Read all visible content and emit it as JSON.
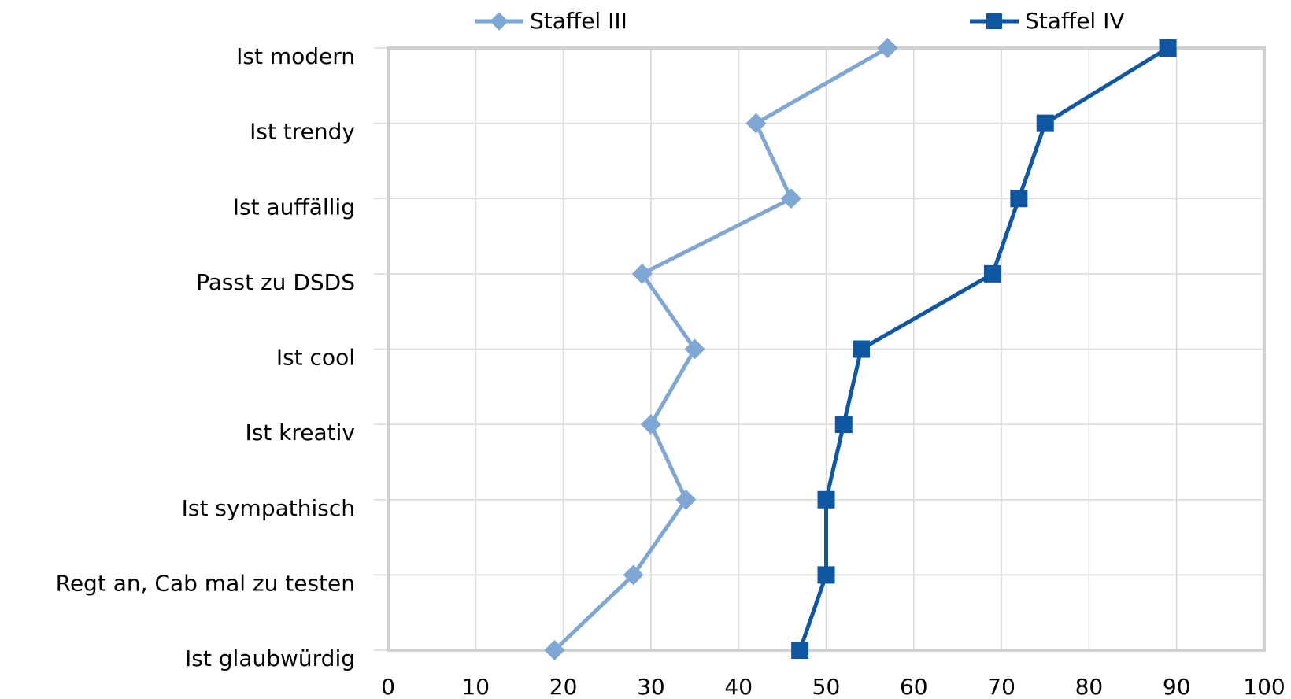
{
  "chart_data": {
    "type": "line",
    "orientation": "horizontal",
    "categories": [
      "Ist modern",
      "Ist trendy",
      "Ist auffällig",
      "Passt zu DSDS",
      "Ist cool",
      "Ist kreativ",
      "Ist sympathisch",
      "Regt an, Cab mal zu testen",
      "Ist glaubwürdig"
    ],
    "series": [
      {
        "name": "Staffel III",
        "color": "#7fa7d4",
        "marker": "diamond",
        "values": [
          57,
          42,
          46,
          29,
          35,
          30,
          34,
          28,
          19
        ]
      },
      {
        "name": "Staffel IV",
        "color": "#0f56a3",
        "marker": "square",
        "values": [
          89,
          75,
          72,
          69,
          54,
          52,
          50,
          50,
          47
        ]
      }
    ],
    "xlim": [
      0,
      100
    ],
    "xticks": [
      0,
      10,
      20,
      30,
      40,
      50,
      60,
      70,
      80,
      90,
      100
    ],
    "grid": true,
    "legend": "top"
  }
}
